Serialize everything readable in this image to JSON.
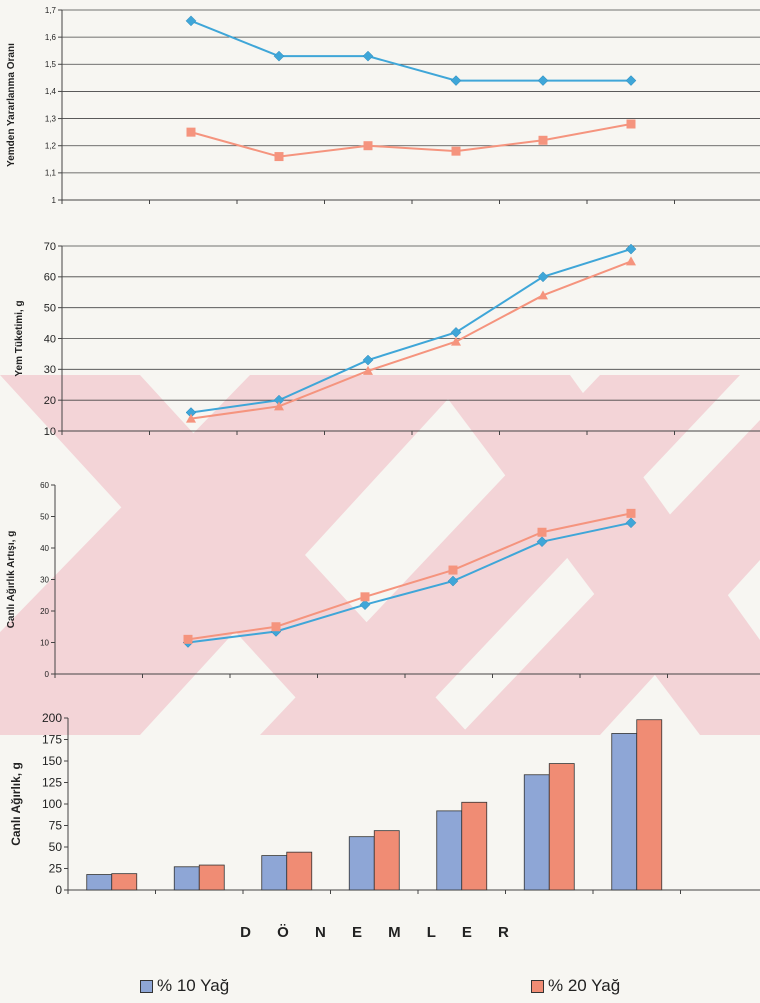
{
  "chart_data": [
    {
      "type": "line",
      "ylabel": "Yemden Yararlanma Oranı",
      "ylim": [
        1,
        1.7
      ],
      "yticks": [
        "1",
        "1,1",
        "1,2",
        "1,3",
        "1,4",
        "1,5",
        "1,6",
        "1,7"
      ],
      "grid": true,
      "series": [
        {
          "name": "% 10 Yağ",
          "values": [
            1.66,
            1.53,
            1.53,
            1.44,
            1.44,
            1.44
          ]
        },
        {
          "name": "% 20 Yağ",
          "values": [
            1.25,
            1.16,
            1.2,
            1.18,
            1.22,
            1.28
          ]
        }
      ]
    },
    {
      "type": "line",
      "ylabel": "Yem Tüketimi, g",
      "ylim": [
        10,
        70
      ],
      "yticks": [
        "10",
        "20",
        "30",
        "40",
        "50",
        "60",
        "70"
      ],
      "grid": true,
      "series": [
        {
          "name": "% 10 Yağ",
          "values": [
            16,
            20,
            33,
            42,
            60,
            69
          ]
        },
        {
          "name": "% 20 Yağ",
          "values": [
            14,
            18,
            29.5,
            39,
            54,
            65
          ]
        }
      ]
    },
    {
      "type": "line",
      "ylabel": "Canlı Ağırlık Artışı, g",
      "ylim": [
        0,
        60
      ],
      "yticks": [
        "0",
        "10",
        "20",
        "30",
        "40",
        "50",
        "60"
      ],
      "grid": false,
      "series": [
        {
          "name": "% 10 Yağ",
          "values": [
            10,
            13.5,
            22,
            29.5,
            42,
            48
          ]
        },
        {
          "name": "% 20 Yağ",
          "values": [
            11,
            15,
            24.5,
            33,
            45,
            51
          ]
        }
      ]
    },
    {
      "type": "bar",
      "ylabel": "Canlı Ağırlık, g",
      "ylim": [
        0,
        200
      ],
      "yticks": [
        "0",
        "25",
        "50",
        "75",
        "100",
        "125",
        "150",
        "175",
        "200"
      ],
      "grid": false,
      "series": [
        {
          "name": "% 10 Yağ",
          "values": [
            18,
            27,
            40,
            62,
            92,
            134,
            182
          ]
        },
        {
          "name": "% 20 Yağ",
          "values": [
            19,
            29,
            44,
            69,
            102,
            147,
            198
          ]
        }
      ]
    }
  ],
  "xlabel": "D Ö N E M L E R",
  "legend": [
    {
      "label": "% 10 Yağ",
      "color": "#8ea6d6",
      "line_color": "#3fa6d8"
    },
    {
      "label": "% 20 Yağ",
      "color": "#f08c74",
      "line_color": "#f5947e"
    }
  ],
  "watermark": {
    "color": "#f2c9cf"
  }
}
